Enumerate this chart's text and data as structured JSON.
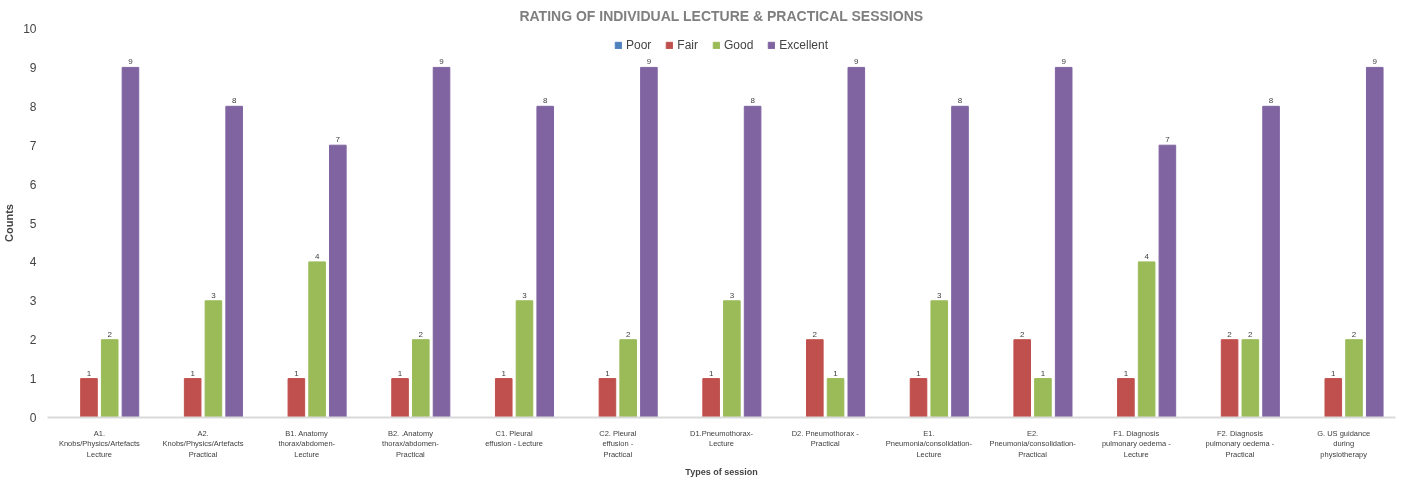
{
  "chart_data": {
    "type": "bar",
    "title": "RATING OF INDIVIDUAL LECTURE & PRACTICAL SESSIONS",
    "xlabel": "Types of session",
    "ylabel": "Counts",
    "categories": [
      "A1. Knobs/Physics/Artefacts Lecture",
      "A2. Knobs/Physics/Artefacts Practical",
      "B1. Anatomy thorax/abdomen- Lecture",
      "B2. .Anatomy thorax/abdomen- Practical",
      "C1. Pleural effusion - Lecture",
      "C2. Pleural effusion - Practical",
      "D1.Pneumothorax- Lecture",
      "D2. Pneumothorax - Practical",
      "E1. Pneumonia/consolidation- Lecture",
      "E2. Pneumonia/consolidation- Practical",
      "F1. Diagnosis pulmonary oedema - Lecture",
      "F2. Diagnosis pulmonary oedema - Practical",
      "G. US guidance during physiotherapy"
    ],
    "series": [
      {
        "name": "Poor",
        "color": "#4f81bd",
        "values": [
          0,
          0,
          0,
          0,
          0,
          0,
          0,
          0,
          0,
          0,
          0,
          0,
          0
        ],
        "value_labels": [
          null,
          null,
          null,
          null,
          null,
          null,
          null,
          null,
          null,
          null,
          null,
          null,
          null
        ]
      },
      {
        "name": "Fair",
        "color": "#c0504d",
        "values": [
          1,
          1,
          1,
          1,
          1,
          1,
          1,
          2,
          1,
          2,
          1,
          2,
          1
        ],
        "value_labels": [
          "1",
          "1",
          "1",
          "1",
          "1",
          "1",
          "1",
          "2",
          "1",
          "2",
          "1",
          "2",
          "1"
        ]
      },
      {
        "name": "Good",
        "color": "#9bbb59",
        "values": [
          2,
          3,
          4,
          2,
          3,
          2,
          3,
          1,
          3,
          1,
          4,
          2,
          2
        ],
        "value_labels": [
          "2",
          "3",
          "4",
          "2",
          "3",
          "2",
          "3",
          "1",
          "3",
          "1",
          "4",
          "2",
          "2"
        ]
      },
      {
        "name": "Excellent",
        "color": "#8064a2",
        "values": [
          9,
          8,
          7,
          9,
          8,
          9,
          8,
          9,
          8,
          9,
          7,
          8,
          9
        ],
        "value_labels": [
          "9",
          "8",
          "7",
          "9",
          "8",
          "9",
          "8",
          "9",
          "8",
          "9",
          "7",
          "8",
          "9"
        ]
      }
    ],
    "ylim": [
      0,
      10
    ],
    "yticks": [
      0,
      1,
      2,
      3,
      4,
      5,
      6,
      7,
      8,
      9,
      10
    ],
    "grid": false,
    "legend": "top"
  }
}
